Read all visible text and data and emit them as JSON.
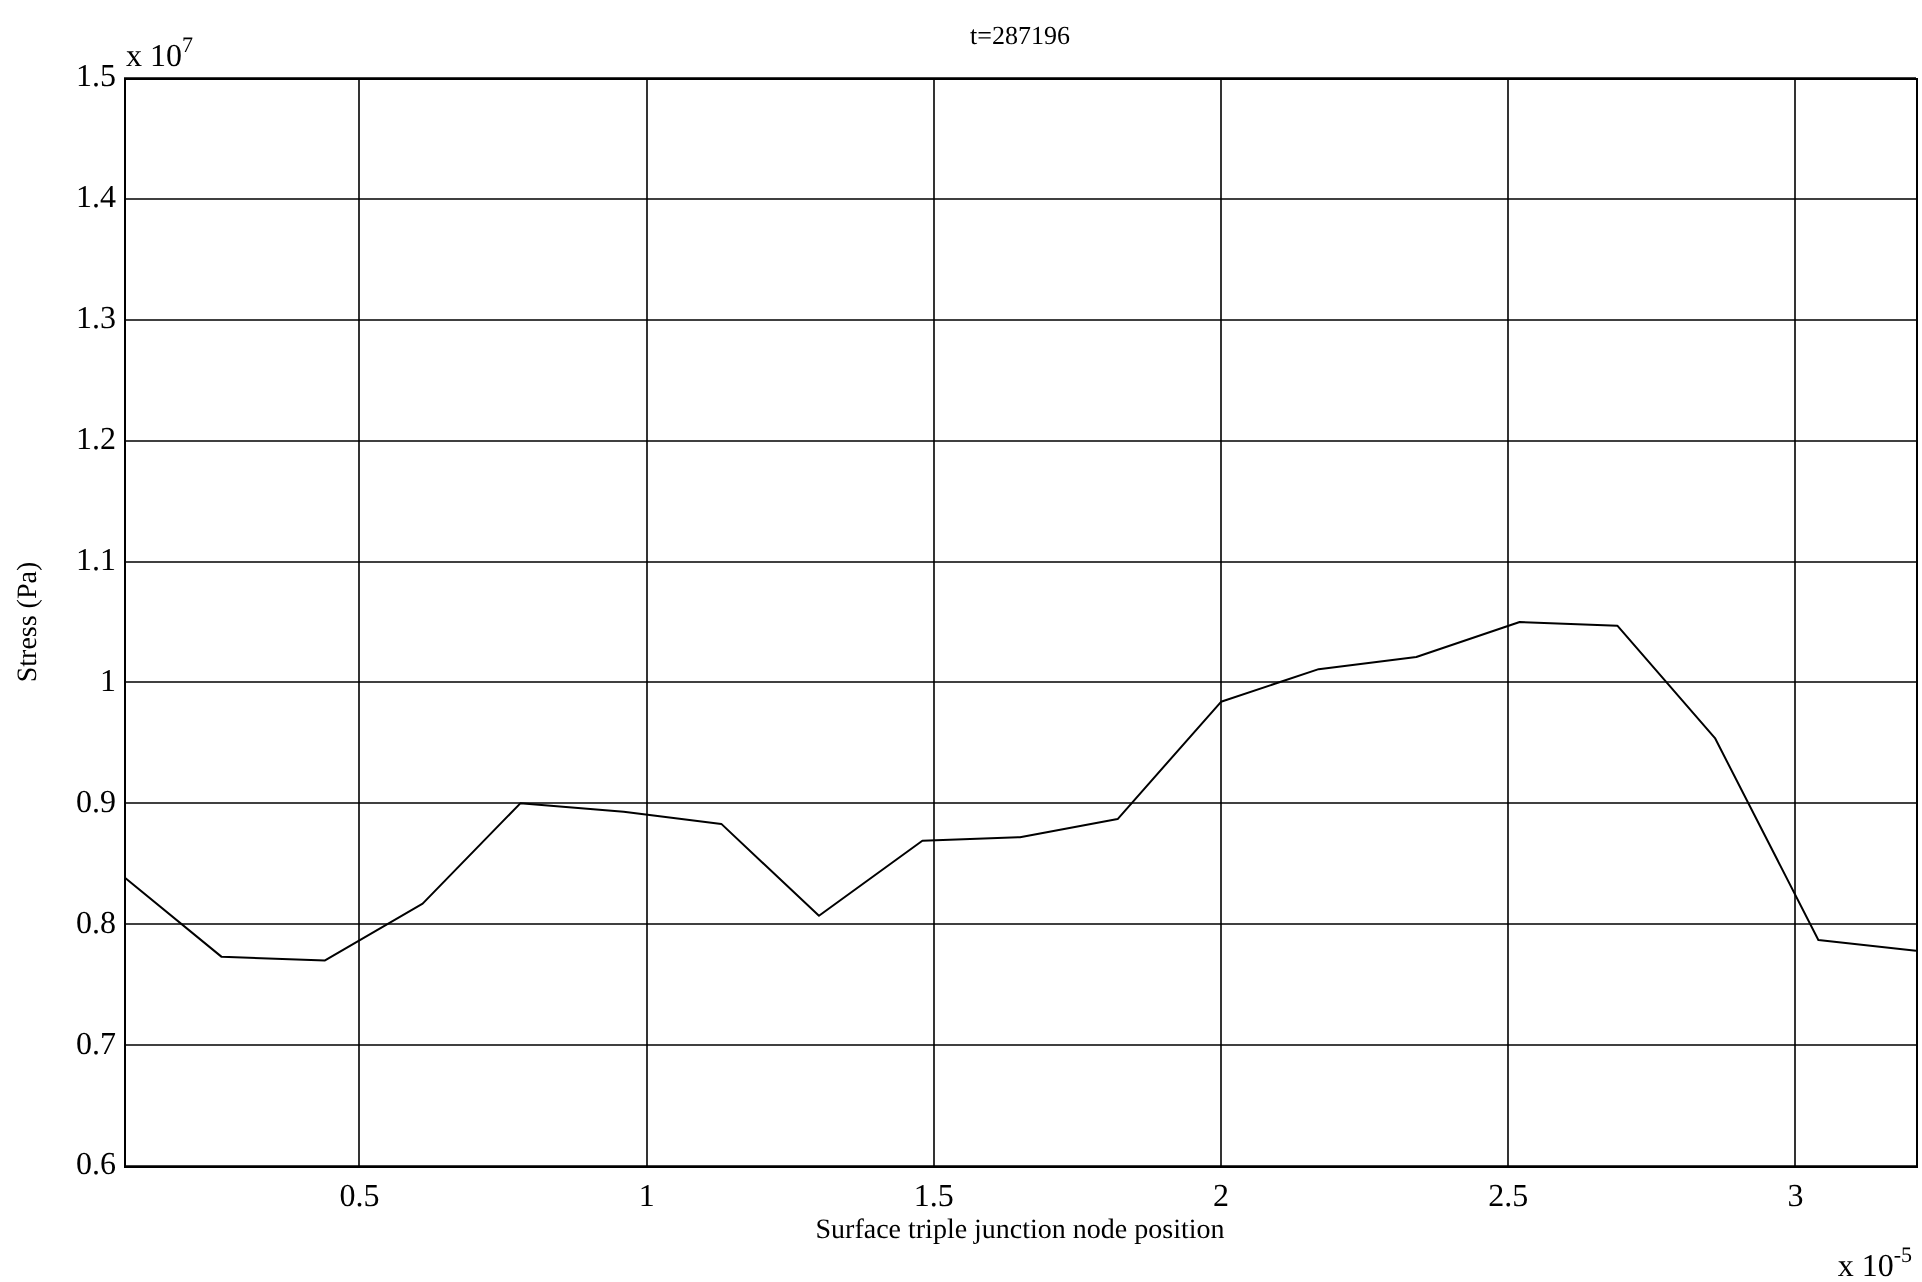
{
  "chart_data": {
    "type": "line",
    "title": "t=287196",
    "xlabel": "Surface triple junction node position",
    "ylabel": "Stress (Pa)",
    "annotations": [
      "x 10$^{7}$",
      "x 10$^{-5}$"
    ],
    "x": [
      0.09,
      0.26,
      0.44,
      0.61,
      0.78,
      0.96,
      1.13,
      1.3,
      1.48,
      1.65,
      1.82,
      2.0,
      2.17,
      2.34,
      2.52,
      2.69,
      2.86,
      3.04,
      3.21
    ],
    "series": [
      {
        "color": "#000000",
        "values": [
          0.839,
          0.773,
          0.77,
          0.817,
          0.9,
          0.893,
          0.883,
          0.807,
          0.869,
          0.872,
          0.887,
          0.984,
          1.011,
          1.021,
          1.05,
          1.047,
          0.954,
          0.787,
          0.778
        ]
      }
    ],
    "xlim": [
      0.09,
      3.21
    ],
    "xticks": [
      0.5,
      1,
      1.5,
      2,
      2.5,
      3
    ],
    "ylim": [
      0.6,
      1.5
    ],
    "yticks": [
      0.6,
      0.7,
      0.8,
      0.9,
      1,
      1.1,
      1.2,
      1.3,
      1.4,
      1.5
    ],
    "grid": true,
    "legend": false,
    "marker": "none",
    "line_style": "solid"
  }
}
